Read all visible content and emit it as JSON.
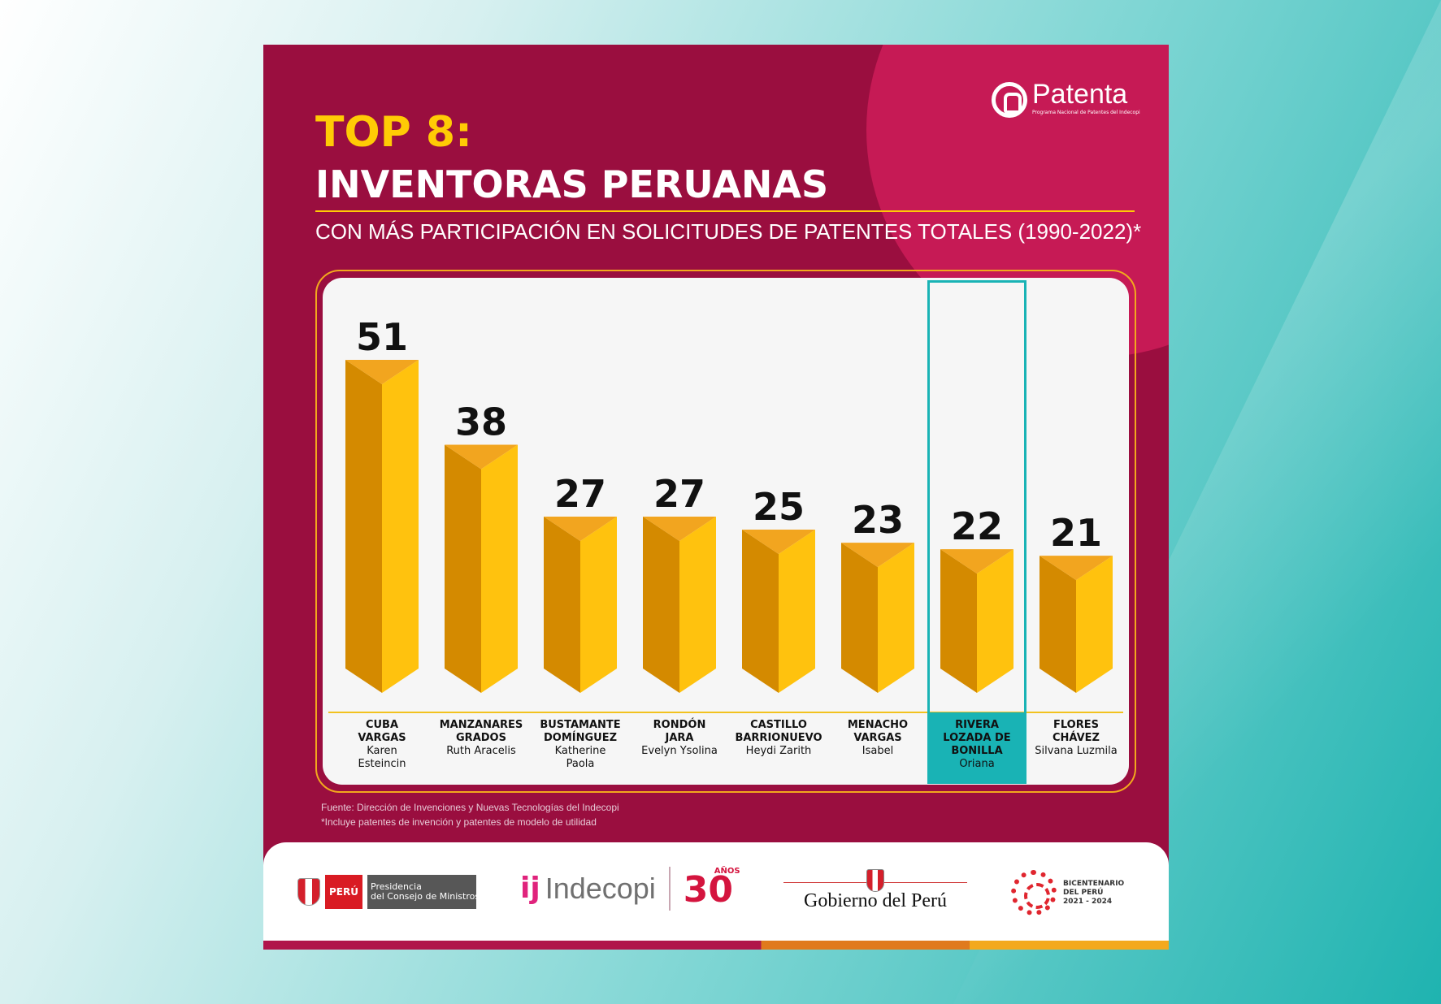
{
  "brand": {
    "logo_name": "Patenta",
    "logo_sub": "Programa Nacional de Patentes del Indecopi"
  },
  "header": {
    "title_line1": "TOP 8:",
    "title_line2": "INVENTORAS PERUANAS",
    "subtitle": "CON MÁS PARTICIPACIÓN EN SOLICITUDES DE PATENTES TOTALES (1990-2022)*"
  },
  "chart_data": {
    "type": "bar",
    "title": "INVENTORAS PERUANAS",
    "categories": [
      "CUBA VARGAS Karen Esteincin",
      "MANZANARES GRADOS Ruth Aracelis",
      "BUSTAMANTE DOMÍNGUEZ Katherine Paola",
      "RONDÓN JARA Evelyn Ysolina",
      "CASTILLO BARRIONUEVO Heydi Zarith",
      "MENACHO VARGAS Isabel",
      "RIVERA LOZADA DE BONILLA Oriana",
      "FLORES CHÁVEZ Silvana Luzmila"
    ],
    "values": [
      51,
      38,
      27,
      27,
      25,
      23,
      22,
      21
    ],
    "highlighted_index": 6,
    "colors": {
      "bar_light": "#ffc20e",
      "bar_dark": "#d48a00",
      "bar_top": "#f2a51f",
      "highlight": "#19b3b5"
    }
  },
  "bars": [
    {
      "surname": "CUBA\nVARGAS",
      "given": "Karen\nEsteincin",
      "value_label": "51"
    },
    {
      "surname": "MANZANARES\nGRADOS",
      "given": "Ruth Aracelis",
      "value_label": "38"
    },
    {
      "surname": "BUSTAMANTE\nDOMÍNGUEZ",
      "given": "Katherine\nPaola",
      "value_label": "27"
    },
    {
      "surname": "RONDÓN\nJARA",
      "given": "Evelyn Ysolina",
      "value_label": "27"
    },
    {
      "surname": "CASTILLO\nBARRIONUEVO",
      "given": "Heydi Zarith",
      "value_label": "25"
    },
    {
      "surname": "MENACHO\nVARGAS",
      "given": "Isabel",
      "value_label": "23"
    },
    {
      "surname": "RIVERA\nLOZADA DE\nBONILLA",
      "given": "Oriana",
      "value_label": "22"
    },
    {
      "surname": "FLORES\nCHÁVEZ",
      "given": "Silvana Luzmila",
      "value_label": "21"
    }
  ],
  "footnotes": {
    "source": "Fuente: Dirección de Invenciones y Nuevas Tecnologías del Indecopi",
    "note": "*Incluye patentes de invención y patentes de modelo de utilidad"
  },
  "footer": {
    "peru_label": "PERÚ",
    "pcm_label": "Presidencia\ndel Consejo de Ministros",
    "indecopi_label": "Indecopi",
    "anos_number": "30",
    "anos_word": "AÑOS",
    "gobierno_label": "Gobierno del Perú",
    "bicentenario_label": "BICENTENARIO\nDEL PERÚ\n2021 - 2024"
  }
}
